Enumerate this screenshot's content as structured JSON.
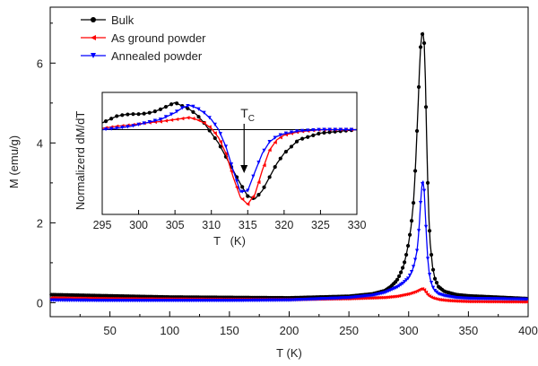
{
  "chart_data": [
    {
      "type": "line",
      "xlabel": "T (K)",
      "ylabel": "M (emu/g)",
      "xlim": [
        0,
        400
      ],
      "ylim": [
        -0.35,
        7.4
      ],
      "xticks": [
        50,
        100,
        150,
        200,
        250,
        300,
        350,
        400
      ],
      "yticks": [
        0,
        2,
        4,
        6
      ],
      "legend": {
        "placement": "top-left"
      },
      "series": [
        {
          "name": "Bulk",
          "color": "#000000",
          "marker": "circle",
          "x": [
            0,
            50,
            100,
            150,
            200,
            250,
            270,
            280,
            285,
            290,
            293,
            296,
            298,
            300,
            302,
            304,
            305,
            306,
            307,
            308,
            309,
            310,
            311,
            312,
            313,
            314,
            315,
            316,
            317,
            318,
            320,
            322,
            325,
            330,
            340,
            350,
            400
          ],
          "y": [
            0.2,
            0.17,
            0.14,
            0.13,
            0.12,
            0.16,
            0.22,
            0.3,
            0.4,
            0.55,
            0.72,
            0.95,
            1.2,
            1.5,
            1.9,
            2.5,
            3.0,
            3.6,
            4.3,
            5.0,
            5.8,
            6.4,
            6.7,
            6.75,
            6.5,
            5.6,
            4.2,
            3.0,
            2.1,
            1.5,
            0.9,
            0.6,
            0.4,
            0.28,
            0.2,
            0.17,
            0.1
          ]
        },
        {
          "name": "As ground powder",
          "color": "#ff0000",
          "marker": "triangle-left",
          "x": [
            0,
            50,
            100,
            150,
            200,
            250,
            280,
            290,
            295,
            300,
            303,
            306,
            308,
            310,
            311,
            312,
            313,
            314,
            315,
            316,
            318,
            320,
            325,
            330,
            340,
            350,
            400
          ],
          "y": [
            0.12,
            0.1,
            0.09,
            0.08,
            0.08,
            0.1,
            0.13,
            0.16,
            0.19,
            0.22,
            0.25,
            0.28,
            0.31,
            0.34,
            0.35,
            0.34,
            0.32,
            0.28,
            0.24,
            0.2,
            0.15,
            0.12,
            0.08,
            0.06,
            0.04,
            0.03,
            0.02
          ]
        },
        {
          "name": "Annealed  powder",
          "color": "#0000ff",
          "marker": "triangle-down",
          "x": [
            0,
            50,
            100,
            150,
            200,
            250,
            270,
            280,
            290,
            295,
            300,
            303,
            305,
            307,
            308,
            309,
            310,
            311,
            312,
            313,
            314,
            315,
            316,
            317,
            318,
            320,
            322,
            325,
            330,
            340,
            350,
            400
          ],
          "y": [
            0.06,
            0.05,
            0.05,
            0.05,
            0.06,
            0.12,
            0.18,
            0.25,
            0.38,
            0.48,
            0.62,
            0.8,
            1.0,
            1.3,
            1.6,
            2.0,
            2.5,
            2.9,
            3.05,
            2.8,
            2.2,
            1.6,
            1.1,
            0.8,
            0.6,
            0.4,
            0.3,
            0.22,
            0.17,
            0.12,
            0.1,
            0.08
          ]
        }
      ]
    },
    {
      "type": "line",
      "xlabel": "T   (K)",
      "ylabel": "Normalizerd dM/dT",
      "xlim": [
        295,
        330
      ],
      "ylim": [
        -1.25,
        0.55
      ],
      "xticks": [
        295,
        300,
        305,
        310,
        315,
        320,
        325,
        330
      ],
      "annotation": {
        "text": "T",
        "subscript": "C",
        "x": 314.5
      },
      "series": [
        {
          "name": "Bulk",
          "color": "#000000",
          "x": [
            295,
            296,
            297,
            298,
            299,
            300,
            301,
            302,
            303,
            304,
            305,
            306,
            307,
            308,
            309,
            310,
            311,
            312,
            313,
            314,
            315,
            316,
            317,
            318,
            319,
            320,
            322,
            325,
            330
          ],
          "y": [
            0.1,
            0.15,
            0.2,
            0.22,
            0.23,
            0.23,
            0.24,
            0.26,
            0.3,
            0.35,
            0.4,
            0.35,
            0.3,
            0.22,
            0.1,
            -0.05,
            -0.2,
            -0.4,
            -0.6,
            -0.8,
            -0.98,
            -1.02,
            -0.9,
            -0.7,
            -0.5,
            -0.35,
            -0.15,
            -0.05,
            0.0
          ]
        },
        {
          "name": "As ground powder",
          "color": "#ff0000",
          "x": [
            295,
            297,
            299,
            301,
            303,
            305,
            307,
            308,
            309,
            310,
            311,
            312,
            313,
            314,
            315,
            316,
            317,
            318,
            319,
            320,
            322,
            325,
            330
          ],
          "y": [
            0.02,
            0.05,
            0.07,
            0.1,
            0.12,
            0.15,
            0.18,
            0.15,
            0.1,
            0.02,
            -0.12,
            -0.35,
            -0.7,
            -1.0,
            -1.1,
            -0.95,
            -0.6,
            -0.3,
            -0.15,
            -0.08,
            -0.03,
            0.0,
            0.0
          ]
        },
        {
          "name": "Annealed  powder",
          "color": "#0000ff",
          "x": [
            295,
            297,
            299,
            301,
            303,
            305,
            306,
            307,
            308,
            309,
            310,
            311,
            312,
            313,
            314,
            315,
            316,
            317,
            318,
            319,
            320,
            322,
            325,
            330
          ],
          "y": [
            0.0,
            0.02,
            0.05,
            0.1,
            0.15,
            0.25,
            0.32,
            0.36,
            0.32,
            0.25,
            0.15,
            0.0,
            -0.25,
            -0.6,
            -0.92,
            -0.9,
            -0.62,
            -0.35,
            -0.18,
            -0.1,
            -0.06,
            -0.02,
            0.0,
            0.0
          ]
        }
      ]
    }
  ]
}
